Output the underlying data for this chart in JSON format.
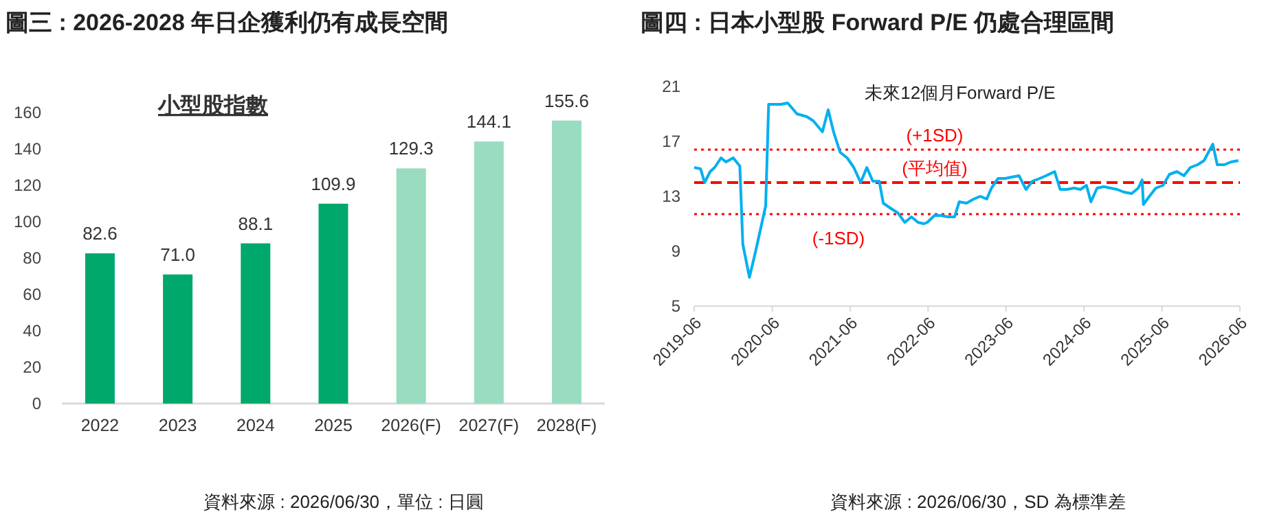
{
  "chart_data": [
    {
      "type": "bar",
      "title": "圖三 : 2026-2028 年日企獲利仍有成長空間",
      "subtitle": "小型股指數",
      "categories": [
        "2022",
        "2023",
        "2024",
        "2025",
        "2026(F)",
        "2027(F)",
        "2028(F)"
      ],
      "values": [
        82.6,
        71.0,
        88.1,
        109.9,
        129.3,
        144.1,
        155.6
      ],
      "colors": [
        "#00a86b",
        "#00a86b",
        "#00a86b",
        "#00a86b",
        "#99dcc0",
        "#99dcc0",
        "#99dcc0"
      ],
      "value_labels": [
        "82.6",
        "71.0",
        "88.1",
        "109.9",
        "129.3",
        "144.1",
        "155.6"
      ],
      "ylim": [
        0,
        160
      ],
      "yticks": [
        0,
        20,
        40,
        60,
        80,
        100,
        120,
        140,
        160
      ],
      "grid": false,
      "annotations": [
        "資料來源 : 2026/06/30，單位 : 日圓"
      ]
    },
    {
      "type": "line",
      "title": "圖四 : 日本小型股 Forward P/E 仍處合理區間",
      "subtitle": "未來12個月Forward P/E",
      "x": [
        "2019-06-01",
        "2019-07-01",
        "2019-07-20",
        "2019-08-15",
        "2019-09-05",
        "2019-10-05",
        "2019-10-28",
        "2019-12-01",
        "2020-01-01",
        "2020-01-15",
        "2020-02-15",
        "2020-03-15",
        "2020-05-01",
        "2020-05-15",
        "2020-06-10",
        "2020-07-12",
        "2020-08-12",
        "2020-09-25",
        "2020-11-10",
        "2020-12-10",
        "2021-01-22",
        "2021-02-18",
        "2021-03-15",
        "2021-04-15",
        "2021-05-18",
        "2021-06-18",
        "2021-07-20",
        "2021-08-18",
        "2021-09-15",
        "2021-10-15",
        "2021-11-03",
        "2021-12-10",
        "2022-01-10",
        "2022-02-12",
        "2022-03-15",
        "2022-04-15",
        "2022-05-12",
        "2022-05-28",
        "2022-07-01",
        "2022-08-01",
        "2022-09-03",
        "2022-10-03",
        "2022-10-25",
        "2022-11-28",
        "2023-01-01",
        "2023-02-01",
        "2023-03-03",
        "2023-03-25",
        "2023-04-25",
        "2023-05-28",
        "2023-06-28",
        "2023-08-01",
        "2023-09-03",
        "2023-10-03",
        "2023-11-06",
        "2023-12-06",
        "2024-01-15",
        "2024-02-10",
        "2024-03-12",
        "2024-04-15",
        "2024-05-15",
        "2024-06-12",
        "2024-07-03",
        "2024-08-01",
        "2024-09-01",
        "2024-10-03",
        "2024-11-03",
        "2024-12-06",
        "2025-01-10",
        "2025-02-10",
        "2025-02-28",
        "2025-03-06",
        "2025-04-03",
        "2025-05-03",
        "2025-06-06",
        "2025-07-06",
        "2025-08-10",
        "2025-09-12",
        "2025-10-12",
        "2025-11-15",
        "2025-12-15",
        "2026-01-25",
        "2026-02-15",
        "2026-03-20",
        "2026-04-20",
        "2026-05-25"
      ],
      "series": [
        {
          "color": "#00b0f0",
          "values": [
            15.1,
            15.0,
            14.0,
            14.8,
            15.1,
            15.8,
            15.5,
            15.8,
            15.2,
            9.5,
            7.1,
            9.0,
            12.3,
            19.7,
            19.7,
            19.7,
            19.8,
            19.0,
            18.8,
            18.5,
            17.7,
            19.3,
            17.7,
            16.2,
            15.8,
            15.1,
            14.0,
            15.1,
            14.1,
            14.1,
            12.5,
            12.1,
            11.8,
            11.1,
            11.5,
            11.1,
            11.0,
            11.1,
            11.6,
            11.6,
            11.5,
            11.5,
            12.6,
            12.5,
            12.8,
            13.0,
            12.8,
            13.6,
            14.3,
            14.3,
            14.4,
            14.5,
            13.5,
            14.1,
            14.3,
            14.5,
            14.8,
            13.5,
            13.5,
            13.6,
            13.5,
            13.8,
            12.6,
            13.6,
            13.7,
            13.6,
            13.5,
            13.3,
            13.2,
            13.6,
            14.2,
            12.4,
            13.0,
            13.6,
            13.8,
            14.6,
            14.8,
            14.5,
            15.1,
            15.3,
            15.6,
            16.8,
            15.3,
            15.3,
            15.5,
            15.6
          ]
        }
      ],
      "xlim": [
        "2019-06-01",
        "2026-06-01"
      ],
      "xticks": [
        {
          "value": "2019-06-01",
          "label": "2019-06"
        },
        {
          "value": "2020-06-01",
          "label": "2020-06"
        },
        {
          "value": "2021-06-01",
          "label": "2021-06"
        },
        {
          "value": "2022-06-01",
          "label": "2022-06"
        },
        {
          "value": "2023-06-01",
          "label": "2023-06"
        },
        {
          "value": "2024-06-01",
          "label": "2024-06"
        },
        {
          "value": "2025-06-01",
          "label": "2025-06"
        },
        {
          "value": "2026-06-01",
          "label": "2026-06"
        }
      ],
      "ylim": [
        5,
        21
      ],
      "yticks": [
        5,
        9,
        13,
        17,
        21
      ],
      "grid": false,
      "ref_lines": [
        {
          "axis": "y",
          "value": 16.4,
          "label": "(+1SD)",
          "color": "#ff0000",
          "line_style": "dotted"
        },
        {
          "axis": "y",
          "value": 14.0,
          "label": "(平均值)",
          "color": "#ff0000",
          "line_style": "dashed"
        },
        {
          "axis": "y",
          "value": 11.7,
          "label": "(-1SD)",
          "color": "#ff0000",
          "line_style": "dotted"
        }
      ],
      "annotations": [
        "資料來源 : 2026/06/30，SD 為標準差"
      ]
    }
  ]
}
